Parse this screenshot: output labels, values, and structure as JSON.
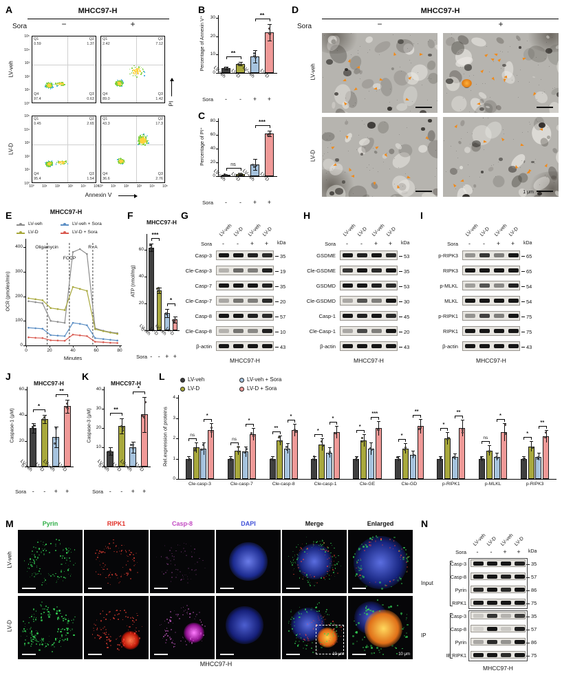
{
  "letters": {
    "A": "A",
    "B": "B",
    "C": "C",
    "D": "D",
    "E": "E",
    "F": "F",
    "G": "G",
    "H": "H",
    "I": "I",
    "J": "J",
    "K": "K",
    "L": "L",
    "M": "M",
    "N": "N"
  },
  "colors": {
    "veh": "#3f3f3f",
    "lvd": "#a8a83c",
    "veh_sora": "#a6c3de",
    "lvd_sora": "#f09a98",
    "arrow": "#f08a1a"
  },
  "panelA": {
    "title": "MHCC97-H",
    "sora": "Sora",
    "minus": "−",
    "plus": "+",
    "rows": [
      "LV-veh",
      "LV-D"
    ],
    "xaxis": "Annexin V",
    "yaxis": "PI",
    "q_names": [
      "Q1",
      "Q2",
      "Q3",
      "Q4"
    ],
    "yticks": [
      "10⁵",
      "10⁴",
      "10³",
      "10²",
      "10¹",
      "10⁰"
    ],
    "xticks": [
      "10⁰",
      "10¹",
      "10²",
      "10³",
      "10⁴",
      "10⁵"
    ],
    "plots": [
      {
        "Q1": "0.59",
        "Q2": "1.37",
        "Q3": "0.63",
        "Q4": "97.4"
      },
      {
        "Q1": "2.42",
        "Q2": "7.12",
        "Q3": "1.42",
        "Q4": "89.0"
      },
      {
        "Q1": "0.45",
        "Q2": "2.65",
        "Q3": "1.54",
        "Q4": "95.4"
      },
      {
        "Q1": "43.3",
        "Q2": "17.3",
        "Q3": "2.76",
        "Q4": "36.6"
      }
    ]
  },
  "panelD": {
    "title": "MHCC97-H",
    "sora": "Sora",
    "minus": "−",
    "plus": "+",
    "rows": [
      "LV-veh",
      "LV-D"
    ],
    "scale": "1 μm"
  },
  "panelM": {
    "channels": [
      {
        "name": "Pyrin",
        "color": "#2fae46"
      },
      {
        "name": "RIPK1",
        "color": "#e03028"
      },
      {
        "name": "Casp-8",
        "color": "#c24ac2"
      },
      {
        "name": "DAPI",
        "color": "#4152d8"
      },
      {
        "name": "Merge",
        "color": "#111111"
      },
      {
        "name": "Enlarged",
        "color": "#111111"
      }
    ],
    "rows": [
      "LV-veh",
      "LV-D"
    ],
    "scale": "10 μm",
    "footer": "MHCC97-H"
  },
  "blots": {
    "G": {
      "cols": [
        "LV-veh",
        "LV-D",
        "LV-veh",
        "LV-D"
      ],
      "sora": "Sora",
      "sora_vals": [
        "-",
        "-",
        "+",
        "+"
      ],
      "kda": "kDa",
      "footer": "MHCC97-H",
      "rows": [
        {
          "name": "Casp-3",
          "kda": "35",
          "bands": [
            1,
            1,
            0.95,
            0.9
          ]
        },
        {
          "name": "Cle-Casp-3",
          "kda": "19",
          "bands": [
            0.25,
            0.6,
            0.5,
            0.95
          ]
        },
        {
          "name": "Casp-7",
          "kda": "35",
          "bands": [
            1,
            1,
            1,
            0.95
          ]
        },
        {
          "name": "Cle-Casp-7",
          "kda": "20",
          "bands": [
            0.3,
            0.55,
            0.5,
            0.9
          ]
        },
        {
          "name": "Casp-8",
          "kda": "57",
          "bands": [
            1,
            1,
            0.95,
            0.9
          ]
        },
        {
          "name": "Cle-Casp-8",
          "kda": "10",
          "bands": [
            0.25,
            0.55,
            0.45,
            0.95
          ]
        },
        {
          "name": "β-actin",
          "kda": "43",
          "bands": [
            1,
            1,
            1,
            1
          ]
        }
      ]
    },
    "H": {
      "cols": [
        "LV-veh",
        "LV-D",
        "LV-veh",
        "LV-D"
      ],
      "sora": "Sora",
      "sora_vals": [
        "-",
        "-",
        "+",
        "+"
      ],
      "kda": "kDa",
      "footer": "MHCC97-H",
      "rows": [
        {
          "name": "GSDME",
          "kda": "53",
          "bands": [
            1,
            0.95,
            1,
            0.9
          ]
        },
        {
          "name": "Cle-GSDME",
          "kda": "35",
          "bands": [
            0.85,
            1,
            0.9,
            1
          ]
        },
        {
          "name": "GSDMD",
          "kda": "53",
          "bands": [
            1,
            1,
            0.95,
            0.9
          ]
        },
        {
          "name": "Cle-GSDMD",
          "kda": "30",
          "bands": [
            0.3,
            0.7,
            0.5,
            1
          ]
        },
        {
          "name": "Casp-1",
          "kda": "45",
          "bands": [
            1,
            0.95,
            1,
            0.9
          ]
        },
        {
          "name": "Cle-Casp-1",
          "kda": "20",
          "bands": [
            0.3,
            0.75,
            0.5,
            1
          ]
        },
        {
          "name": "β-actin",
          "kda": "43",
          "bands": [
            1,
            1,
            1,
            1
          ]
        }
      ]
    },
    "I": {
      "cols": [
        "LV-veh",
        "LV-D",
        "LV-veh",
        "LV-D"
      ],
      "sora": "Sora",
      "sora_vals": [
        "-",
        "-",
        "+",
        "+"
      ],
      "kda": "kDa",
      "footer": "MHCC97-H",
      "rows": [
        {
          "name": "p-RIPK3",
          "kda": "65",
          "bands": [
            0.4,
            0.85,
            0.5,
            1
          ]
        },
        {
          "name": "RIPK3",
          "kda": "65",
          "bands": [
            1,
            1,
            1,
            1
          ]
        },
        {
          "name": "p-MLKL",
          "kda": "54",
          "bands": [
            0.35,
            0.7,
            0.45,
            0.95
          ]
        },
        {
          "name": "MLKL",
          "kda": "54",
          "bands": [
            1,
            1,
            1,
            1
          ]
        },
        {
          "name": "p-RIPK1",
          "kda": "75",
          "bands": [
            0.4,
            0.8,
            0.5,
            1
          ]
        },
        {
          "name": "RIPK1",
          "kda": "75",
          "bands": [
            1,
            1,
            1,
            1
          ]
        },
        {
          "name": "β-actin",
          "kda": "43",
          "bands": [
            1,
            1,
            1,
            1
          ]
        }
      ]
    },
    "N": {
      "cols": [
        "LV-veh",
        "LV-D",
        "LV-veh",
        "LV-D"
      ],
      "sora": "Sora",
      "sora_vals": [
        "-",
        "-",
        "+",
        "+"
      ],
      "kda": "kDa",
      "footer": "MHCC97-H",
      "groups": [
        {
          "name": "Input",
          "rows": [
            {
              "name": "Casp-3",
              "kda": "35",
              "bands": [
                1,
                1,
                1,
                0.95
              ]
            },
            {
              "name": "Casp-8",
              "kda": "57",
              "bands": [
                1,
                1,
                0.95,
                1
              ]
            },
            {
              "name": "Pyrin",
              "kda": "86",
              "bands": [
                0.9,
                1,
                0.9,
                1
              ]
            },
            {
              "name": "RIPK1",
              "kda": "75",
              "bands": [
                1,
                1,
                1,
                1
              ]
            }
          ]
        },
        {
          "name": "IP",
          "rows": [
            {
              "name": "Casp-3",
              "kda": "35",
              "bands": [
                0.15,
                0.85,
                0.25,
                0.8
              ]
            },
            {
              "name": "Casp-8",
              "kda": "57",
              "bands": [
                0.1,
                1,
                0.15,
                0.95
              ]
            },
            {
              "name": "Pyrin",
              "kda": "86",
              "bands": [
                0.3,
                0.9,
                0.4,
                1
              ]
            },
            {
              "name": "IB:RIPK1",
              "kda": "75",
              "bands": [
                1,
                1,
                0.9,
                1
              ]
            }
          ]
        }
      ]
    }
  },
  "chart_data": [
    {
      "id": "B",
      "type": "bar",
      "ylabel": "Percentage of Annexin V⁺",
      "categories": [
        "LV-veh",
        "LV-D",
        "LV-veh",
        "LV-D"
      ],
      "sora_label": "Sora",
      "sora": [
        "-",
        "-",
        "+",
        "+"
      ],
      "values": [
        2.5,
        5,
        9,
        22
      ],
      "errors": [
        0.7,
        1,
        3.5,
        4.5
      ],
      "ylim": [
        0,
        30
      ],
      "yticks": [
        0,
        10,
        20,
        30
      ],
      "sig": [
        {
          "a": 0,
          "b": 1,
          "t": "**"
        },
        {
          "a": 2,
          "b": 3,
          "t": "**"
        }
      ]
    },
    {
      "id": "C",
      "type": "bar",
      "ylabel": "Percentage of PI⁺",
      "categories": [
        "LV-veh",
        "LV-D",
        "LV-veh",
        "LV-D"
      ],
      "sora_label": "Sora",
      "sora": [
        "-",
        "-",
        "+",
        "+"
      ],
      "values": [
        2,
        3,
        17,
        62
      ],
      "errors": [
        0.5,
        0.7,
        8,
        4
      ],
      "ylim": [
        0,
        80
      ],
      "yticks": [
        0,
        20,
        40,
        60,
        80
      ],
      "sig": [
        {
          "a": 0,
          "b": 1,
          "t": "ns"
        },
        {
          "a": 2,
          "b": 3,
          "t": "***"
        }
      ]
    },
    {
      "id": "E",
      "type": "line",
      "title": "MHCC97-H",
      "ylabel": "OCR (pmoles/min)",
      "xlabel": "Minutes",
      "xlim": [
        0,
        80
      ],
      "ylim": [
        0,
        420
      ],
      "yticks": [
        0,
        100,
        200,
        300,
        400
      ],
      "xticks": [
        0,
        20,
        40,
        60,
        80
      ],
      "events": [
        {
          "x": 18,
          "label": "Oligamycin"
        },
        {
          "x": 37,
          "label": "FCCP"
        },
        {
          "x": 57,
          "label": "R+A"
        }
      ],
      "x": [
        2,
        8,
        14,
        21,
        27,
        33,
        40,
        46,
        52,
        59,
        66,
        72,
        78
      ],
      "series": [
        {
          "name": "LV-veh",
          "color": "#8c8c8c",
          "values": [
            180,
            176,
            172,
            100,
            96,
            92,
            380,
            392,
            372,
            70,
            60,
            54,
            50
          ]
        },
        {
          "name": "LV-veh + Sora",
          "color": "#5b8ec4",
          "values": [
            72,
            70,
            68,
            42,
            40,
            38,
            92,
            88,
            82,
            30,
            26,
            23,
            20
          ]
        },
        {
          "name": "LV-D",
          "color": "#a8a83c",
          "values": [
            192,
            188,
            184,
            152,
            148,
            144,
            238,
            230,
            222,
            66,
            58,
            52,
            47
          ]
        },
        {
          "name": "LV-D + Sora",
          "color": "#d95a50",
          "values": [
            33,
            31,
            30,
            21,
            20,
            19,
            44,
            41,
            38,
            15,
            13,
            11,
            10
          ]
        }
      ]
    },
    {
      "id": "F",
      "type": "bar",
      "title": "MHCC97-H",
      "ylabel": "ATP (nmol/mg)",
      "categories": [
        "LV-veh",
        "LV-D",
        "LV-veh",
        "LV-D"
      ],
      "sora_label": "Sora",
      "sora": [
        "-",
        "-",
        "+",
        "+"
      ],
      "values": [
        62,
        30,
        13,
        8
      ],
      "errors": [
        3,
        2,
        3,
        2.5
      ],
      "ylim": [
        0,
        70
      ],
      "yticks": [
        0,
        20,
        40,
        60
      ],
      "sig": [
        {
          "a": 0,
          "b": 1,
          "t": "***"
        },
        {
          "a": 2,
          "b": 3,
          "t": "*"
        }
      ]
    },
    {
      "id": "J",
      "type": "bar",
      "title": "MHCC97-H",
      "ylabel": "Caspase-1 (μM)",
      "categories": [
        "LV-veh",
        "LV-D",
        "LV-veh",
        "LV-D"
      ],
      "sora_label": "Sora",
      "sora": [
        "-",
        "-",
        "+",
        "+"
      ],
      "values": [
        30,
        37,
        23,
        47
      ],
      "errors": [
        4,
        3,
        8,
        5
      ],
      "ylim": [
        0,
        60
      ],
      "yticks": [
        0,
        20,
        40,
        60
      ],
      "sig": [
        {
          "a": 0,
          "b": 1,
          "t": "*"
        },
        {
          "a": 2,
          "b": 3,
          "t": "**"
        }
      ]
    },
    {
      "id": "K",
      "type": "bar",
      "title": "MHCC97-H",
      "ylabel": "Caspase-3 (μM)",
      "categories": [
        "LV-veh",
        "LV-D",
        "LV-veh",
        "LV-D"
      ],
      "sora_label": "Sora",
      "sora": [
        "-",
        "-",
        "+",
        "+"
      ],
      "values": [
        8,
        21,
        10,
        27
      ],
      "errors": [
        2,
        4,
        3,
        9
      ],
      "ylim": [
        0,
        40
      ],
      "yticks": [
        0,
        10,
        20,
        30,
        40
      ],
      "sig": [
        {
          "a": 0,
          "b": 1,
          "t": "**"
        },
        {
          "a": 2,
          "b": 3,
          "t": "*"
        }
      ]
    },
    {
      "id": "L",
      "type": "grouped-bar",
      "ylabel": "Rel.expression of proteins",
      "ylim": [
        0,
        4
      ],
      "yticks": [
        0,
        1,
        2,
        3,
        4
      ],
      "categories": [
        "Cle-casp-3",
        "Cle-casp-7",
        "Cle-casp-8",
        "Cle-casp-1",
        "Cle-GE",
        "Cle-GD",
        "p-RIPK1",
        "p-MLKL",
        "p-RIPK3"
      ],
      "series": [
        {
          "name": "LV-veh",
          "color": "#3f3f3f",
          "values": [
            1,
            1,
            1,
            1,
            1,
            1,
            1,
            1,
            1
          ],
          "errors": [
            0.12,
            0.12,
            0.12,
            0.12,
            0.12,
            0.12,
            0.12,
            0.12,
            0.12
          ]
        },
        {
          "name": "LV-D",
          "color": "#a8a83c",
          "values": [
            1.55,
            1.4,
            1.9,
            1.7,
            1.9,
            1.5,
            2.0,
            1.4,
            1.6
          ],
          "errors": [
            0.25,
            0.2,
            0.25,
            0.3,
            0.3,
            0.25,
            0.3,
            0.25,
            0.25
          ]
        },
        {
          "name": "LV-veh + Sora",
          "color": "#a6c3de",
          "values": [
            1.5,
            1.35,
            1.5,
            1.3,
            1.5,
            1.2,
            1.1,
            1.1,
            1.1
          ],
          "errors": [
            0.3,
            0.25,
            0.25,
            0.25,
            0.3,
            0.2,
            0.15,
            0.2,
            0.2
          ]
        },
        {
          "name": "LV-D + Sora",
          "color": "#f09a98",
          "values": [
            2.4,
            2.2,
            2.4,
            2.3,
            2.5,
            2.6,
            2.5,
            2.3,
            2.1
          ],
          "errors": [
            0.35,
            0.3,
            0.3,
            0.3,
            0.35,
            0.35,
            0.4,
            0.45,
            0.3
          ]
        }
      ],
      "sig": [
        [
          "ns",
          "*"
        ],
        [
          "ns",
          "*"
        ],
        [
          "**",
          "*"
        ],
        [
          "*",
          "*"
        ],
        [
          "*",
          "***"
        ],
        [
          "*",
          "**"
        ],
        [
          "*",
          "**"
        ],
        [
          "ns",
          "*"
        ],
        [
          "*",
          "**"
        ]
      ]
    }
  ]
}
